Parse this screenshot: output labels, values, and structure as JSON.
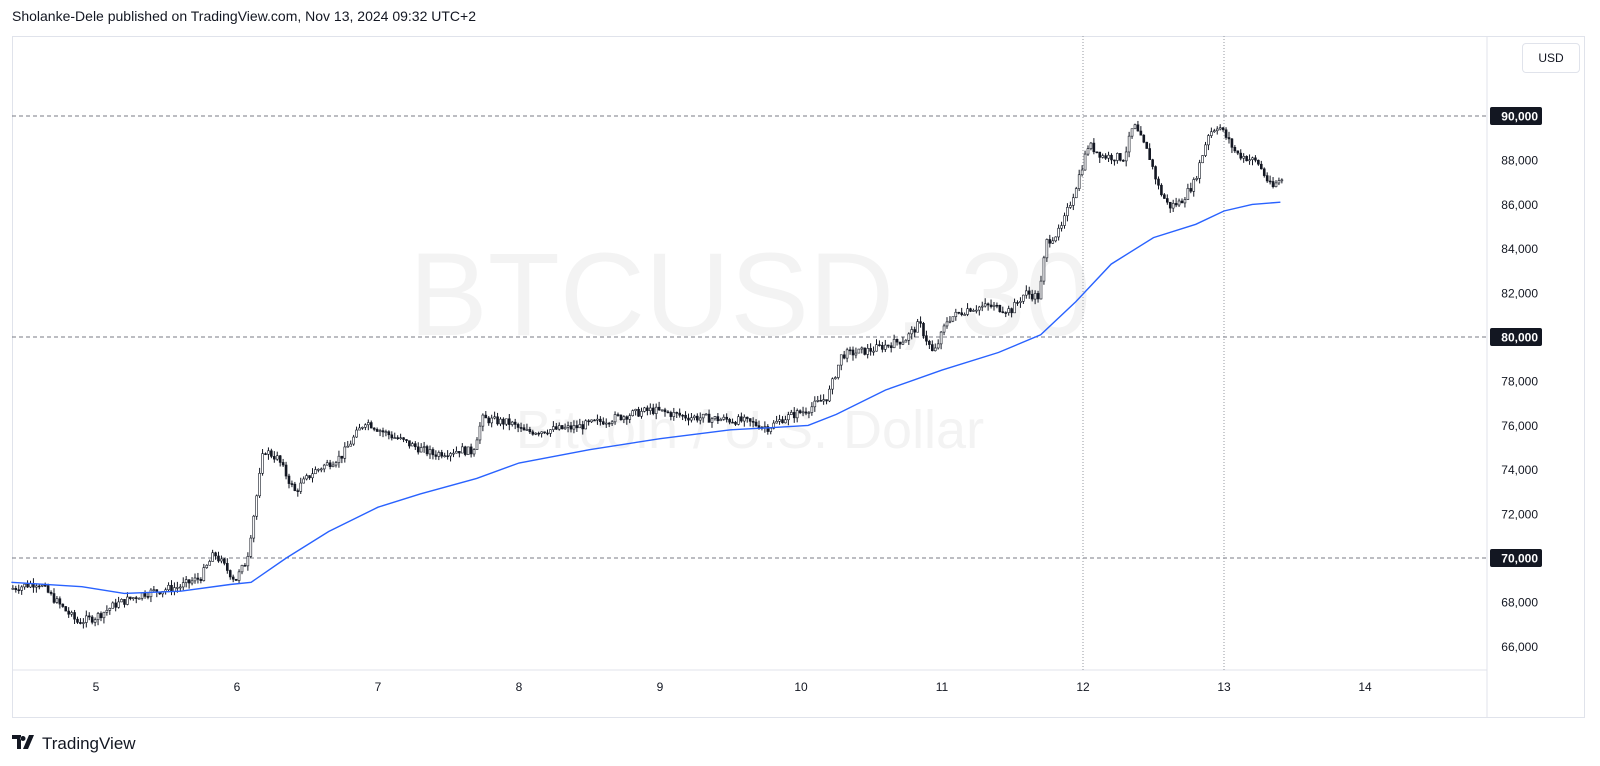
{
  "header": {
    "text": "Sholanke-Dele published on TradingView.com, Nov 13, 2024 09:32 UTC+2"
  },
  "watermark": {
    "symbol": "BTCUSD, 30",
    "description": "Bitcoin / U.S. Dollar"
  },
  "currency_label": "USD",
  "footer": {
    "brand": "TradingView",
    "logo_icon": "tradingview-logo-icon"
  },
  "colors": {
    "candle": "#131722",
    "ma": "#2962ff",
    "grid": "#9598a1",
    "watermark": "#f3f3f3"
  },
  "chart_data": {
    "type": "candlestick",
    "interval": "30 minutes",
    "x_ticks": [
      "5",
      "6",
      "7",
      "8",
      "9",
      "10",
      "11",
      "12",
      "13",
      "14"
    ],
    "xlim_days": [
      4.4,
      14.9
    ],
    "ylim": [
      64500,
      96000
    ],
    "y_ticks": [
      "66,000",
      "68,000",
      "70,000",
      "72,000",
      "74,000",
      "76,000",
      "78,000",
      "80,000",
      "82,000",
      "84,000",
      "86,000",
      "88,000",
      "90,000"
    ],
    "horizontal_lines": [
      {
        "value": 70000,
        "label": "70,000"
      },
      {
        "value": 80000,
        "label": "80,000"
      },
      {
        "value": 90000,
        "label": "90,000"
      }
    ],
    "vertical_lines_days": [
      12,
      13
    ],
    "price_path": [
      [
        4.4,
        68600
      ],
      [
        4.6,
        68900
      ],
      [
        4.75,
        67900
      ],
      [
        4.88,
        67100
      ],
      [
        5.0,
        67300
      ],
      [
        5.15,
        67900
      ],
      [
        5.35,
        68400
      ],
      [
        5.6,
        68700
      ],
      [
        5.75,
        69100
      ],
      [
        5.85,
        70200
      ],
      [
        6.0,
        69000
      ],
      [
        6.08,
        69900
      ],
      [
        6.2,
        74900
      ],
      [
        6.3,
        74500
      ],
      [
        6.42,
        73000
      ],
      [
        6.55,
        73900
      ],
      [
        6.75,
        74600
      ],
      [
        6.92,
        76200
      ],
      [
        7.05,
        75700
      ],
      [
        7.25,
        75100
      ],
      [
        7.4,
        74700
      ],
      [
        7.6,
        74900
      ],
      [
        7.68,
        74800
      ],
      [
        7.75,
        76300
      ],
      [
        7.95,
        76100
      ],
      [
        8.05,
        75700
      ],
      [
        8.4,
        75900
      ],
      [
        8.8,
        76500
      ],
      [
        8.95,
        76700
      ],
      [
        9.2,
        76400
      ],
      [
        9.6,
        76200
      ],
      [
        9.78,
        75900
      ],
      [
        9.88,
        76300
      ],
      [
        10.05,
        76700
      ],
      [
        10.2,
        77300
      ],
      [
        10.3,
        79200
      ],
      [
        10.5,
        79400
      ],
      [
        10.75,
        79900
      ],
      [
        10.85,
        80600
      ],
      [
        10.95,
        79200
      ],
      [
        11.05,
        80800
      ],
      [
        11.2,
        81300
      ],
      [
        11.35,
        81400
      ],
      [
        11.5,
        81200
      ],
      [
        11.6,
        82000
      ],
      [
        11.7,
        81800
      ],
      [
        11.75,
        84300
      ],
      [
        11.85,
        84800
      ],
      [
        11.95,
        86600
      ],
      [
        12.05,
        88700
      ],
      [
        12.15,
        88200
      ],
      [
        12.3,
        88100
      ],
      [
        12.37,
        89600
      ],
      [
        12.48,
        88200
      ],
      [
        12.55,
        86700
      ],
      [
        12.62,
        85900
      ],
      [
        12.7,
        86100
      ],
      [
        12.8,
        87000
      ],
      [
        12.9,
        89200
      ],
      [
        12.97,
        89600
      ],
      [
        13.1,
        88300
      ],
      [
        13.25,
        87900
      ],
      [
        13.35,
        86700
      ],
      [
        13.4,
        87100
      ]
    ],
    "moving_average": [
      [
        4.4,
        68900
      ],
      [
        4.9,
        68700
      ],
      [
        5.2,
        68400
      ],
      [
        5.6,
        68500
      ],
      [
        5.95,
        68800
      ],
      [
        6.1,
        68900
      ],
      [
        6.35,
        70000
      ],
      [
        6.65,
        71200
      ],
      [
        7.0,
        72300
      ],
      [
        7.3,
        72900
      ],
      [
        7.7,
        73600
      ],
      [
        8.0,
        74300
      ],
      [
        8.5,
        74900
      ],
      [
        9.0,
        75400
      ],
      [
        9.5,
        75800
      ],
      [
        9.8,
        75900
      ],
      [
        10.05,
        76000
      ],
      [
        10.25,
        76500
      ],
      [
        10.6,
        77600
      ],
      [
        11.0,
        78500
      ],
      [
        11.4,
        79300
      ],
      [
        11.7,
        80100
      ],
      [
        11.95,
        81600
      ],
      [
        12.2,
        83300
      ],
      [
        12.5,
        84500
      ],
      [
        12.8,
        85100
      ],
      [
        13.0,
        85700
      ],
      [
        13.2,
        86000
      ],
      [
        13.4,
        86100
      ]
    ]
  }
}
